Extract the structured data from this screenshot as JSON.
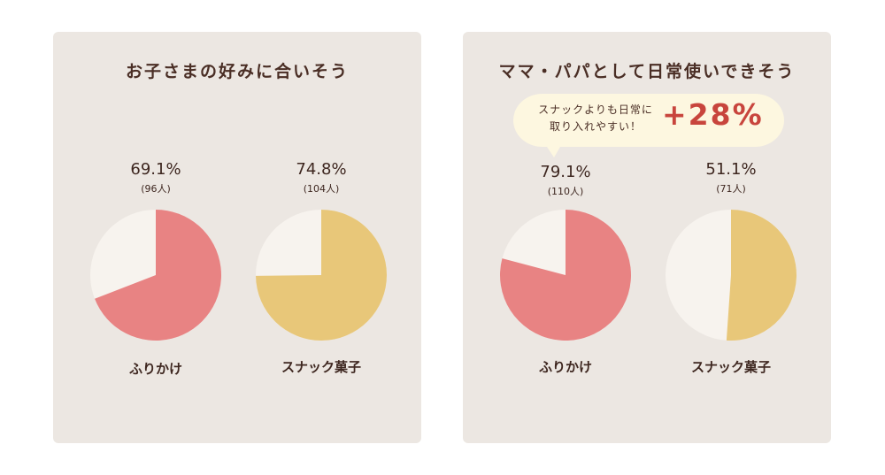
{
  "chart_data": [
    {
      "type": "pie",
      "title": "お子さまの好みに合いそう",
      "pies": [
        {
          "name": "ふりかけ",
          "value": 69.1,
          "percent_label": "69.1%",
          "count_label": "(96人)",
          "color": "#e88383"
        },
        {
          "name": "スナック菓子",
          "value": 74.8,
          "percent_label": "74.8%",
          "count_label": "(104人)",
          "color": "#e8c779"
        }
      ],
      "remainder_color": "#f7f3ee"
    },
    {
      "type": "pie",
      "title": "ママ・パパとして日常使いできそう",
      "callout": {
        "line1": "スナックよりも日常に",
        "line2": "取り入れやすい！",
        "highlight": "+28%"
      },
      "pies": [
        {
          "name": "ふりかけ",
          "value": 79.1,
          "percent_label": "79.1%",
          "count_label": "(110人)",
          "color": "#e88383"
        },
        {
          "name": "スナック菓子",
          "value": 51.1,
          "percent_label": "51.1%",
          "count_label": "(71人)",
          "color": "#e8c779"
        }
      ],
      "remainder_color": "#f7f3ee"
    }
  ]
}
